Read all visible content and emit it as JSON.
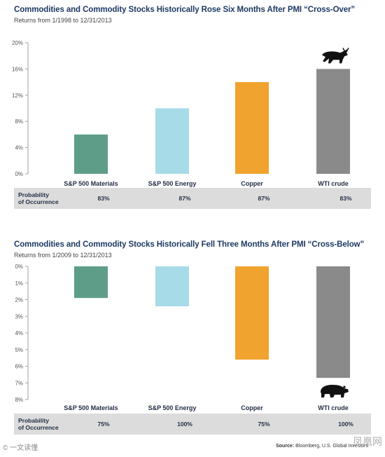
{
  "colors": {
    "materials": "#5e9e88",
    "energy": "#a7dbe8",
    "copper": "#f0a32e",
    "wti": "#8a8a8a"
  },
  "chart_data": [
    {
      "type": "bar",
      "title": "Commodities and Commodity Stocks Historically Rose Six Months After PMI “Cross-Over”",
      "subtitle": "Returns from 1/1998 to 12/31/2013",
      "categories": [
        "S&P 500 Materials",
        "S&P 500 Energy",
        "Copper",
        "WTI crude"
      ],
      "values": [
        6,
        10,
        14,
        16
      ],
      "unit": "%",
      "ylim": [
        0,
        20
      ],
      "yticks": [
        "0%",
        "4%",
        "8%",
        "12%",
        "16%",
        "20%"
      ],
      "probability_label": [
        "Probability",
        "of Occurrence"
      ],
      "probability": [
        "83%",
        "87%",
        "87%",
        "83%"
      ],
      "icon": "bull-icon"
    },
    {
      "type": "bar",
      "title": "Commodities and Commodity Stocks Historically Fell Three Months After PMI “Cross-Below”",
      "subtitle": "Returns from 1/2009 to 12/31/2013",
      "categories": [
        "S&P 500 Materials",
        "S&P 500 Energy",
        "Copper",
        "WTI crude"
      ],
      "values": [
        -1.9,
        -2.4,
        -5.6,
        -6.7
      ],
      "unit": "%",
      "ylim": [
        -8,
        0
      ],
      "yticks": [
        "0%",
        "1%",
        "2%",
        "3%",
        "4%",
        "5%",
        "6%",
        "7%",
        "8%"
      ],
      "probability_label": [
        "Probability",
        "of Occurrence"
      ],
      "probability": [
        "75%",
        "100%",
        "75%",
        "100%"
      ],
      "icon": "bear-icon"
    }
  ],
  "source": {
    "label": "Source:",
    "text": "Bloomberg, U.S. Global Investors"
  },
  "watermark_left": "© 一文读懂",
  "watermark_right": "凤凰网"
}
